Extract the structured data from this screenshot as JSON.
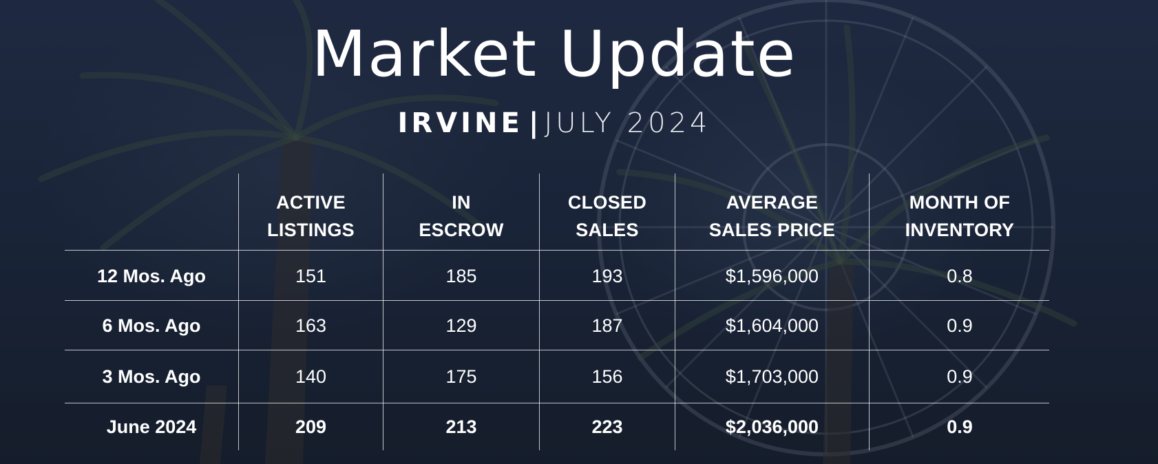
{
  "header": {
    "title": "Market Update",
    "city": "IRVINE",
    "separator": "|",
    "date": "JULY 2024"
  },
  "table": {
    "columns": [
      {
        "line1": "ACTIVE",
        "line2": "LISTINGS"
      },
      {
        "line1": "IN",
        "line2": "ESCROW"
      },
      {
        "line1": "CLOSED",
        "line2": "SALES"
      },
      {
        "line1": "AVERAGE",
        "line2": "SALES PRICE"
      },
      {
        "line1": "MONTH OF",
        "line2": "INVENTORY"
      }
    ],
    "rows": [
      {
        "label": "12 Mos. Ago",
        "values": [
          "151",
          "185",
          "193",
          "$1,596,000",
          "0.8"
        ]
      },
      {
        "label": "6 Mos. Ago",
        "values": [
          "163",
          "129",
          "187",
          "$1,604,000",
          "0.9"
        ]
      },
      {
        "label": "3 Mos. Ago",
        "values": [
          "140",
          "175",
          "156",
          "$1,703,000",
          "0.9"
        ]
      },
      {
        "label": "June 2024",
        "values": [
          "209",
          "213",
          "223",
          "$2,036,000",
          "0.9"
        ]
      }
    ]
  },
  "colors": {
    "background": "#1b2638",
    "text": "#ffffff",
    "rule": "#ffffff"
  }
}
